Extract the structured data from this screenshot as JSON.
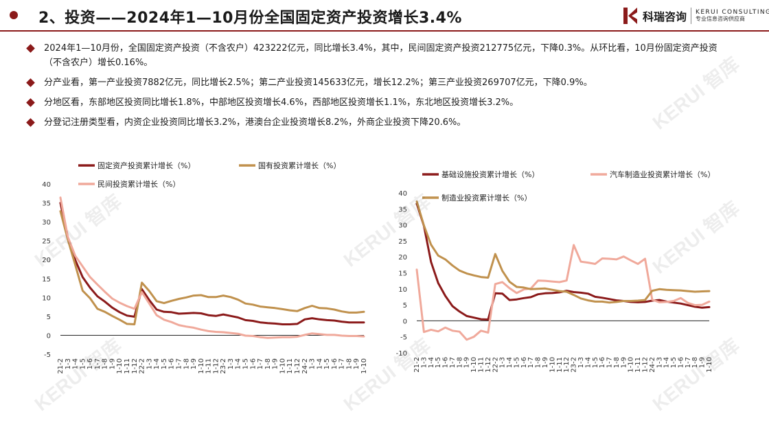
{
  "header": {
    "title": "2、投资——2024年1—10月份全国固定资产投资增长3.4%",
    "logo_name": "科瑞咨询",
    "logo_en": "KERUI CONSULTING",
    "logo_tag": "专业信息咨询供应商"
  },
  "bullets": [
    "2024年1—10月份，全国固定资产投资（不含农户）423222亿元，同比增长3.4%，其中，民间固定资产投资212775亿元，下降0.3%。从环比看，10月份固定资产投资（不含农户）增长0.16%。",
    "分产业看，第一产业投资7882亿元，同比增长2.5%；第二产业投资145633亿元，增长12.2%；第三产业投资269707亿元，下降0.9%。",
    "分地区看，东部地区投资同比增长1.8%，中部地区投资增长4.6%，西部地区投资增长1.1%，东北地区投资增长3.2%。",
    "分登记注册类型看，内资企业投资同比增长3.2%，港澳台企业投资增长8.2%，外商企业投资下降20.6%。"
  ],
  "watermark": {
    "en": "KERUI",
    "cn": "智库"
  },
  "colors": {
    "brand": "#8b1a1a",
    "dark_red": "#8b1a1a",
    "gold": "#c0914d",
    "pink": "#f0a99b"
  },
  "chart_data": [
    {
      "type": "line",
      "categories": [
        "21-2",
        "1-3",
        "1-4",
        "1-5",
        "1-6",
        "1-7",
        "1-8",
        "1-9",
        "1-10",
        "1-11",
        "1-12",
        "22-2",
        "1-3",
        "1-4",
        "1-5",
        "1-6",
        "1-7",
        "1-8",
        "1-9",
        "1-10",
        "1-11",
        "1-12",
        "23-2",
        "1-3",
        "1-4",
        "1-5",
        "1-6",
        "1-7",
        "1-8",
        "1-9",
        "1-10",
        "1-11",
        "1-12",
        "24-2",
        "1-3",
        "1-4",
        "1-5",
        "1-6",
        "1-7",
        "1-8",
        "1-9",
        "1-10"
      ],
      "ylim": [
        -5,
        40
      ],
      "yticks": [
        -5,
        0,
        5,
        10,
        15,
        20,
        25,
        30,
        35,
        40
      ],
      "series": [
        {
          "name": "固定资产投资累计增长（%）",
          "color": "#8b1a1a",
          "values": [
            35,
            25.6,
            19.9,
            15.4,
            12.6,
            10.3,
            8.9,
            7.3,
            6.1,
            5.2,
            4.9,
            12.2,
            9.3,
            6.8,
            6.2,
            6.1,
            5.7,
            5.8,
            5.9,
            5.8,
            5.3,
            5.1,
            5.5,
            5.1,
            4.7,
            4.0,
            3.8,
            3.4,
            3.2,
            3.1,
            2.9,
            2.9,
            3.0,
            4.2,
            4.5,
            4.2,
            4.0,
            3.9,
            3.6,
            3.4,
            3.4,
            3.4
          ]
        },
        {
          "name": "国有投资累计增长（%）",
          "color": "#c0914d",
          "values": [
            32.8,
            25.3,
            18.6,
            11.8,
            9.8,
            7.0,
            6.2,
            5.1,
            4.1,
            3.0,
            2.9,
            13.9,
            11.7,
            9.0,
            8.5,
            9.1,
            9.6,
            10.0,
            10.5,
            10.6,
            10.1,
            10.1,
            10.5,
            10.1,
            9.4,
            8.4,
            8.1,
            7.6,
            7.4,
            7.2,
            6.9,
            6.6,
            6.4,
            7.2,
            7.8,
            7.2,
            7.1,
            6.8,
            6.3,
            6.0,
            6.0,
            6.2
          ]
        },
        {
          "name": "民间投资累计增长（%）",
          "color": "#f0a99b",
          "values": [
            36.4,
            26.0,
            21.0,
            18.2,
            15.4,
            13.4,
            11.5,
            9.7,
            8.6,
            7.7,
            7.0,
            11.4,
            8.4,
            5.3,
            4.1,
            3.5,
            2.7,
            2.3,
            2.0,
            1.5,
            1.1,
            0.9,
            0.8,
            0.6,
            0.4,
            -0.1,
            -0.2,
            -0.5,
            -0.7,
            -0.6,
            -0.5,
            -0.5,
            -0.4,
            0.1,
            0.5,
            0.3,
            0.1,
            0.1,
            -0.1,
            -0.2,
            -0.2,
            -0.3
          ]
        }
      ]
    },
    {
      "type": "line",
      "categories": [
        "21-2",
        "1-3",
        "1-4",
        "1-5",
        "1-6",
        "1-7",
        "1-8",
        "1-9",
        "1-10",
        "1-11",
        "1-12",
        "22-2",
        "1-3",
        "1-4",
        "1-5",
        "1-6",
        "1-7",
        "1-8",
        "1-9",
        "1-10",
        "1-11",
        "1-12",
        "23-2",
        "1-3",
        "1-4",
        "1-5",
        "1-6",
        "1-7",
        "1-8",
        "1-9",
        "1-10",
        "1-11",
        "1-12",
        "24-2",
        "1-3",
        "1-4",
        "1-5",
        "1-6",
        "1-7",
        "1-8",
        "1-9",
        "1-10"
      ],
      "ylim": [
        -10,
        40
      ],
      "yticks": [
        -10,
        -5,
        0,
        5,
        10,
        15,
        20,
        25,
        30,
        35,
        40
      ],
      "series": [
        {
          "name": "基础设施投资累计增长（%）",
          "color": "#8b1a1a",
          "values": [
            36.6,
            29.7,
            18.4,
            11.8,
            7.8,
            4.6,
            2.9,
            1.5,
            1.0,
            0.5,
            0.4,
            8.6,
            8.5,
            6.5,
            6.7,
            7.1,
            7.4,
            8.3,
            8.6,
            8.7,
            8.9,
            9.4,
            9.0,
            8.8,
            8.5,
            7.5,
            7.2,
            6.8,
            6.4,
            6.2,
            5.9,
            5.8,
            5.9,
            6.3,
            6.5,
            6.0,
            5.7,
            5.4,
            4.9,
            4.4,
            4.1,
            4.3
          ]
        },
        {
          "name": "汽车制造业投资累计增长（%）",
          "color": "#f0a99b",
          "values": [
            16.0,
            -3.5,
            -2.8,
            -3.3,
            -2.1,
            -3.1,
            -3.4,
            -5.9,
            -5.0,
            -3.1,
            -3.7,
            11.5,
            12.1,
            10.2,
            8.7,
            9.8,
            10.1,
            12.6,
            12.5,
            12.3,
            12.1,
            12.6,
            23.7,
            18.5,
            18.2,
            17.8,
            19.5,
            19.4,
            19.2,
            20.1,
            18.9,
            17.8,
            19.4,
            6.6,
            5.8,
            5.9,
            6.2,
            7.1,
            5.6,
            4.9,
            5.0,
            6.0
          ]
        },
        {
          "name": "制造业投资累计增长（%）",
          "color": "#c0914d",
          "values": [
            37.3,
            29.8,
            23.8,
            20.4,
            19.2,
            17.3,
            15.7,
            14.8,
            14.2,
            13.7,
            13.5,
            20.9,
            15.6,
            12.2,
            10.6,
            10.4,
            9.9,
            10.0,
            10.1,
            9.7,
            9.3,
            9.1,
            8.1,
            7.0,
            6.4,
            6.0,
            6.0,
            5.7,
            5.9,
            6.2,
            6.2,
            6.3,
            6.5,
            9.4,
            9.9,
            9.7,
            9.6,
            9.5,
            9.3,
            9.1,
            9.2,
            9.3
          ]
        }
      ]
    }
  ]
}
